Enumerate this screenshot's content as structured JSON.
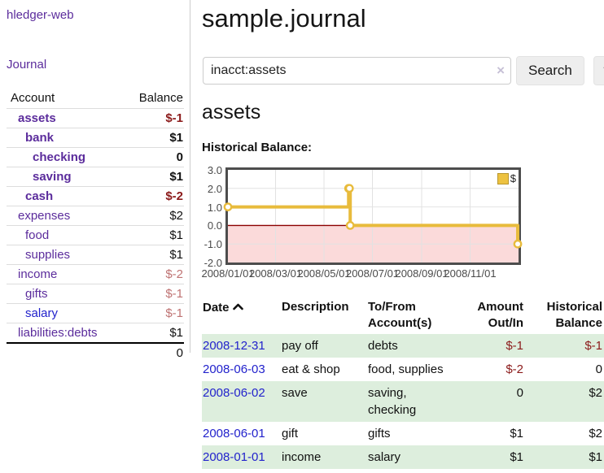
{
  "app": {
    "brand": "hledger-web",
    "nav_journal": "Journal"
  },
  "sidebar": {
    "headers": {
      "account": "Account",
      "balance": "Balance"
    },
    "rows": [
      {
        "name": "assets",
        "balance": "$-1"
      },
      {
        "name": "bank",
        "balance": "$1"
      },
      {
        "name": "checking",
        "balance": "0"
      },
      {
        "name": "saving",
        "balance": "$1"
      },
      {
        "name": "cash",
        "balance": "$-2"
      },
      {
        "name": "expenses",
        "balance": "$2"
      },
      {
        "name": "food",
        "balance": "$1"
      },
      {
        "name": "supplies",
        "balance": "$1"
      },
      {
        "name": "income",
        "balance": "$-2"
      },
      {
        "name": "gifts",
        "balance": "$-1"
      },
      {
        "name": "salary",
        "balance": "$-1"
      },
      {
        "name": "liabilities:debts",
        "balance": "$1"
      }
    ],
    "total": "0"
  },
  "main": {
    "title": "sample.journal",
    "search": {
      "value": "inacct:assets",
      "clear_icon": "×",
      "button_label": "Search",
      "help_label": "?"
    },
    "account_heading": "assets",
    "chart_label": "Historical Balance:"
  },
  "chart_data": {
    "type": "line",
    "title": "Historical Balance:",
    "step": true,
    "xlim_days": [
      0,
      366
    ],
    "ylim": [
      -2,
      3
    ],
    "yticks": [
      3,
      2,
      1,
      0,
      -1,
      -2
    ],
    "xticks": [
      {
        "day": 0,
        "label": "2008/01/01"
      },
      {
        "day": 60,
        "label": "2008/03/01"
      },
      {
        "day": 121,
        "label": "2008/05/01"
      },
      {
        "day": 182,
        "label": "2008/07/01"
      },
      {
        "day": 244,
        "label": "2008/09/01"
      },
      {
        "day": 305,
        "label": "2008/11/01"
      }
    ],
    "series": [
      {
        "name": "$",
        "color": "#e8bb3c",
        "points": [
          {
            "date": "2008/01/01",
            "day": 0,
            "value": 1
          },
          {
            "date": "2008/06/01",
            "day": 152,
            "value": 2
          },
          {
            "date": "2008/06/02",
            "day": 153,
            "value": 2
          },
          {
            "date": "2008/06/03",
            "day": 154,
            "value": 0
          },
          {
            "date": "2008/12/31",
            "day": 365,
            "value": -1
          }
        ]
      }
    ],
    "negative_region_color": "#fbdada",
    "zero_line_color": "#8b0000",
    "grid": true,
    "legend_position": "top-right"
  },
  "register": {
    "headers": {
      "date": "Date",
      "description": "Description",
      "accounts": "To/From Account(s)",
      "amount": "Amount Out/In",
      "balance": "Historical Balance"
    },
    "rows": [
      {
        "date": "2008-12-31",
        "description": "pay off",
        "accounts": "debts",
        "amount": "$-1",
        "balance": "$-1"
      },
      {
        "date": "2008-06-03",
        "description": "eat & shop",
        "accounts": "food, supplies",
        "amount": "$-2",
        "balance": "0"
      },
      {
        "date": "2008-06-02",
        "description": "save",
        "accounts": "saving, checking",
        "amount": "0",
        "balance": "$2"
      },
      {
        "date": "2008-06-01",
        "description": "gift",
        "accounts": "gifts",
        "amount": "$1",
        "balance": "$2"
      },
      {
        "date": "2008-01-01",
        "description": "income",
        "accounts": "salary",
        "amount": "$1",
        "balance": "$1"
      }
    ]
  }
}
